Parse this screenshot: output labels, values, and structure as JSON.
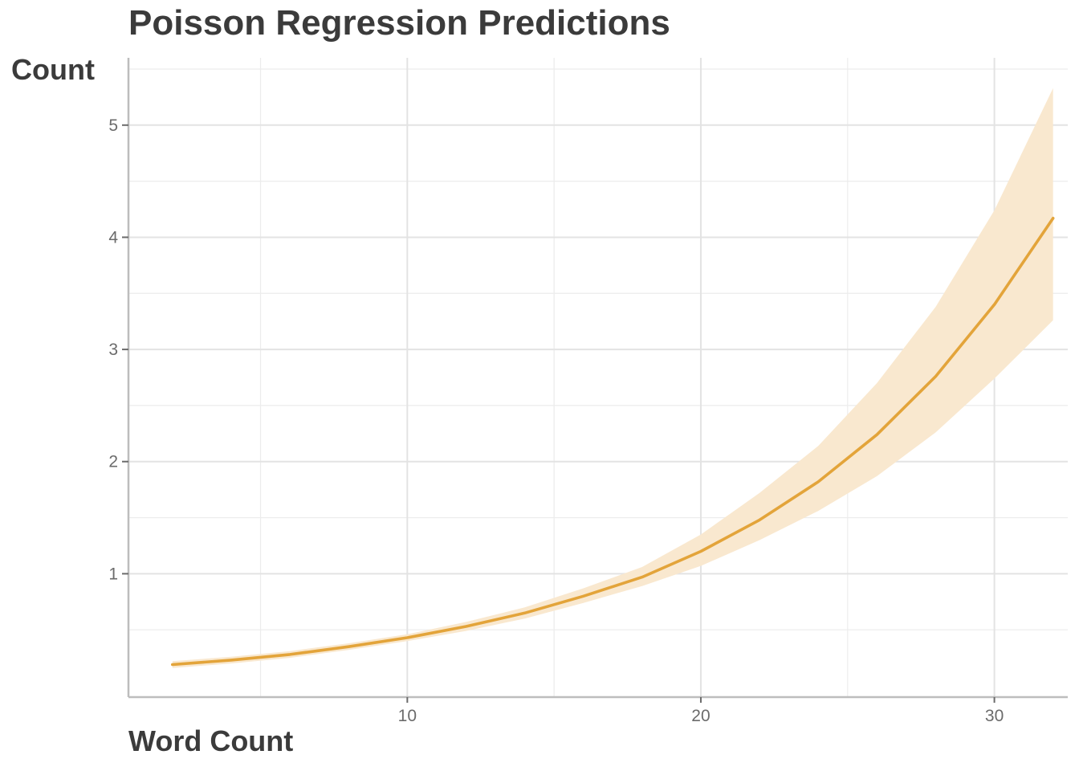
{
  "chart_data": {
    "type": "line",
    "title": "Poisson Regression Predictions",
    "xlabel": "Word Count",
    "ylabel": "Count",
    "xlim": [
      0.5,
      32.5
    ],
    "ylim": [
      -0.1,
      5.6
    ],
    "x_ticks": [
      10,
      20,
      30
    ],
    "y_ticks": [
      1,
      2,
      3,
      4,
      5
    ],
    "grid": true,
    "line_color": "#E3A43A",
    "band_color": "#F9E8CF",
    "series": [
      {
        "x": [
          2,
          4,
          6,
          8,
          10,
          12,
          14,
          16,
          18,
          20,
          22,
          24,
          26,
          28,
          30,
          32
        ],
        "y": [
          0.19,
          0.23,
          0.28,
          0.35,
          0.43,
          0.53,
          0.65,
          0.8,
          0.97,
          1.2,
          1.48,
          1.82,
          2.24,
          2.76,
          3.4,
          4.17
        ],
        "lower": [
          0.16,
          0.2,
          0.25,
          0.32,
          0.4,
          0.49,
          0.6,
          0.74,
          0.89,
          1.07,
          1.3,
          1.56,
          1.87,
          2.26,
          2.74,
          3.26
        ],
        "upper": [
          0.22,
          0.26,
          0.31,
          0.38,
          0.46,
          0.57,
          0.7,
          0.87,
          1.06,
          1.35,
          1.72,
          2.14,
          2.7,
          3.38,
          4.24,
          5.33
        ]
      }
    ]
  }
}
